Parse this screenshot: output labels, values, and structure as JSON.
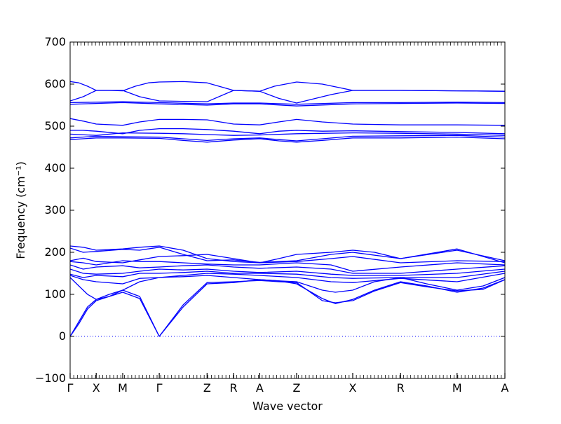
{
  "chart_data": {
    "type": "line",
    "title": "",
    "xlabel": "Wave vector",
    "ylabel": "Frequency (cm⁻¹)",
    "ylim": [
      -100,
      700
    ],
    "yticks": [
      -100,
      0,
      100,
      200,
      300,
      400,
      500,
      600,
      700
    ],
    "grid": false,
    "line_color": "#0000ff",
    "zero_line_color": "#0000ff",
    "high_symmetry_points": [
      {
        "label": "Γ",
        "x": 0.0
      },
      {
        "label": "X",
        "x": 0.06
      },
      {
        "label": "M",
        "x": 0.121
      },
      {
        "label": "Γ",
        "x": 0.205
      },
      {
        "label": "Z",
        "x": 0.315
      },
      {
        "label": "R",
        "x": 0.376
      },
      {
        "label": "A",
        "x": 0.436
      },
      {
        "label": "Z",
        "x": 0.521
      },
      {
        "label": "X",
        "x": 0.65
      },
      {
        "label": "R",
        "x": 0.76
      },
      {
        "label": "M",
        "x": 0.89
      },
      {
        "label": "A",
        "x": 1.0
      }
    ],
    "series": [
      {
        "x": [
          0,
          0.02,
          0.04,
          0.06,
          0.09,
          0.121,
          0.15,
          0.18,
          0.205,
          0.26,
          0.315,
          0.376,
          0.436,
          0.47,
          0.521,
          0.58,
          0.65,
          0.76,
          0.89,
          1.0
        ],
        "values": [
          606,
          603,
          595,
          585,
          585,
          584,
          595,
          603,
          605,
          606,
          603,
          585,
          583,
          595,
          605,
          600,
          585,
          585,
          584,
          583
        ]
      },
      {
        "x": [
          0,
          0.03,
          0.06,
          0.121,
          0.16,
          0.205,
          0.315,
          0.376,
          0.436,
          0.48,
          0.521,
          0.6,
          0.65,
          0.76,
          0.89,
          1.0
        ],
        "values": [
          560,
          570,
          585,
          585,
          570,
          560,
          558,
          585,
          583,
          566,
          555,
          575,
          585,
          585,
          584,
          583
        ]
      },
      {
        "x": [
          0,
          0.06,
          0.121,
          0.205,
          0.315,
          0.376,
          0.436,
          0.521,
          0.65,
          0.76,
          0.89,
          1.0
        ],
        "values": [
          556,
          557,
          558,
          556,
          553,
          555,
          555,
          552,
          556,
          556,
          557,
          556
        ]
      },
      {
        "x": [
          0,
          0.06,
          0.121,
          0.205,
          0.315,
          0.376,
          0.436,
          0.521,
          0.65,
          0.76,
          0.89,
          1.0
        ],
        "values": [
          552,
          554,
          556,
          553,
          550,
          553,
          553,
          548,
          553,
          554,
          555,
          554
        ]
      },
      {
        "x": [
          0,
          0.03,
          0.06,
          0.121,
          0.16,
          0.205,
          0.26,
          0.315,
          0.376,
          0.436,
          0.48,
          0.521,
          0.58,
          0.65,
          0.76,
          0.89,
          1.0
        ],
        "values": [
          518,
          512,
          505,
          502,
          510,
          516,
          516,
          515,
          505,
          503,
          510,
          516,
          510,
          505,
          503,
          503,
          502
        ]
      },
      {
        "x": [
          0,
          0.03,
          0.06,
          0.121,
          0.16,
          0.205,
          0.26,
          0.315,
          0.376,
          0.436,
          0.48,
          0.521,
          0.58,
          0.65,
          0.76,
          0.89,
          1.0
        ],
        "values": [
          490,
          490,
          488,
          482,
          490,
          494,
          494,
          492,
          488,
          482,
          488,
          490,
          488,
          489,
          487,
          485,
          482
        ]
      },
      {
        "x": [
          0,
          0.06,
          0.121,
          0.205,
          0.26,
          0.315,
          0.376,
          0.436,
          0.521,
          0.65,
          0.76,
          0.89,
          1.0
        ],
        "values": [
          481,
          478,
          484,
          483,
          482,
          480,
          478,
          479,
          482,
          484,
          483,
          481,
          478
        ]
      },
      {
        "x": [
          0,
          0.06,
          0.121,
          0.205,
          0.26,
          0.315,
          0.376,
          0.436,
          0.48,
          0.521,
          0.58,
          0.65,
          0.76,
          0.89,
          1.0
        ],
        "values": [
          472,
          476,
          475,
          474,
          470,
          466,
          470,
          472,
          468,
          465,
          470,
          476,
          477,
          478,
          474
        ]
      },
      {
        "x": [
          0,
          0.06,
          0.121,
          0.205,
          0.26,
          0.315,
          0.376,
          0.436,
          0.48,
          0.521,
          0.58,
          0.65,
          0.76,
          0.89,
          1.0
        ],
        "values": [
          468,
          472,
          472,
          471,
          466,
          462,
          467,
          470,
          465,
          462,
          466,
          472,
          472,
          474,
          470
        ]
      },
      {
        "x": [
          0,
          0.03,
          0.06,
          0.121,
          0.16,
          0.205,
          0.26,
          0.315,
          0.376,
          0.436,
          0.48,
          0.521,
          0.6,
          0.65,
          0.7,
          0.76,
          0.89,
          1.0
        ],
        "values": [
          215,
          212,
          205,
          208,
          212,
          215,
          205,
          185,
          178,
          175,
          185,
          195,
          200,
          205,
          200,
          185,
          208,
          175
        ]
      },
      {
        "x": [
          0,
          0.03,
          0.06,
          0.121,
          0.16,
          0.205,
          0.26,
          0.315,
          0.376,
          0.436,
          0.521,
          0.6,
          0.65,
          0.76,
          0.89,
          1.0
        ],
        "values": [
          210,
          200,
          202,
          207,
          205,
          212,
          195,
          180,
          182,
          176,
          180,
          195,
          200,
          185,
          205,
          180
        ]
      },
      {
        "x": [
          0,
          0.03,
          0.06,
          0.121,
          0.16,
          0.205,
          0.26,
          0.315,
          0.376,
          0.436,
          0.521,
          0.6,
          0.65,
          0.76,
          0.89,
          1.0
        ],
        "values": [
          180,
          186,
          178,
          175,
          182,
          190,
          192,
          195,
          185,
          175,
          178,
          185,
          190,
          175,
          180,
          178
        ]
      },
      {
        "x": [
          0,
          0.03,
          0.06,
          0.121,
          0.16,
          0.205,
          0.26,
          0.315,
          0.376,
          0.436,
          0.521,
          0.6,
          0.65,
          0.76,
          0.89,
          1.0
        ],
        "values": [
          178,
          175,
          170,
          180,
          178,
          178,
          175,
          172,
          170,
          170,
          175,
          170,
          155,
          165,
          175,
          170
        ]
      },
      {
        "x": [
          0,
          0.03,
          0.06,
          0.121,
          0.16,
          0.205,
          0.26,
          0.315,
          0.376,
          0.436,
          0.521,
          0.6,
          0.65,
          0.76,
          0.89,
          1.0
        ],
        "values": [
          170,
          160,
          165,
          168,
          163,
          165,
          168,
          170,
          165,
          162,
          165,
          160,
          150,
          150,
          160,
          168
        ]
      },
      {
        "x": [
          0,
          0.03,
          0.06,
          0.121,
          0.16,
          0.205,
          0.26,
          0.315,
          0.376,
          0.436,
          0.521,
          0.6,
          0.65,
          0.76,
          0.89,
          1.0
        ],
        "values": [
          160,
          150,
          148,
          150,
          155,
          160,
          158,
          160,
          155,
          152,
          155,
          148,
          145,
          145,
          150,
          160
        ]
      },
      {
        "x": [
          0,
          0.03,
          0.06,
          0.121,
          0.16,
          0.205,
          0.26,
          0.315,
          0.376,
          0.436,
          0.521,
          0.6,
          0.65,
          0.76,
          0.89,
          1.0
        ],
        "values": [
          148,
          140,
          145,
          142,
          150,
          150,
          152,
          155,
          150,
          150,
          148,
          140,
          138,
          140,
          140,
          155
        ]
      },
      {
        "x": [
          0,
          0.03,
          0.06,
          0.121,
          0.16,
          0.205,
          0.26,
          0.315,
          0.376,
          0.436,
          0.521,
          0.6,
          0.65,
          0.76,
          0.89,
          1.0
        ],
        "values": [
          145,
          135,
          130,
          125,
          138,
          140,
          145,
          150,
          148,
          145,
          140,
          130,
          128,
          138,
          130,
          150
        ]
      },
      {
        "x": [
          0,
          0.02,
          0.04,
          0.06,
          0.09,
          0.121,
          0.16,
          0.205,
          0.26,
          0.315,
          0.376,
          0.436,
          0.48,
          0.521,
          0.58,
          0.61,
          0.65,
          0.7,
          0.76,
          0.82,
          0.89,
          0.95,
          1.0
        ],
        "values": [
          140,
          120,
          100,
          88,
          95,
          110,
          130,
          140,
          142,
          145,
          140,
          135,
          132,
          130,
          110,
          105,
          110,
          130,
          140,
          125,
          110,
          120,
          140
        ]
      },
      {
        "x": [
          0,
          0.02,
          0.04,
          0.06,
          0.09,
          0.121,
          0.16,
          0.205,
          0.26,
          0.315,
          0.376,
          0.436,
          0.48,
          0.521,
          0.58,
          0.61,
          0.65,
          0.7,
          0.76,
          0.82,
          0.89,
          0.95,
          1.0
        ],
        "values": [
          0,
          35,
          70,
          88,
          100,
          110,
          95,
          0,
          70,
          125,
          128,
          135,
          132,
          125,
          90,
          78,
          88,
          110,
          130,
          120,
          105,
          115,
          135
        ]
      },
      {
        "x": [
          0,
          0.02,
          0.04,
          0.06,
          0.09,
          0.121,
          0.16,
          0.205,
          0.26,
          0.315,
          0.376,
          0.436,
          0.48,
          0.521,
          0.58,
          0.61,
          0.65,
          0.7,
          0.76,
          0.82,
          0.89,
          0.95,
          1.0
        ],
        "values": [
          0,
          30,
          65,
          85,
          95,
          105,
          90,
          0,
          75,
          128,
          130,
          133,
          130,
          128,
          85,
          80,
          85,
          108,
          128,
          118,
          108,
          112,
          135
        ]
      }
    ]
  }
}
